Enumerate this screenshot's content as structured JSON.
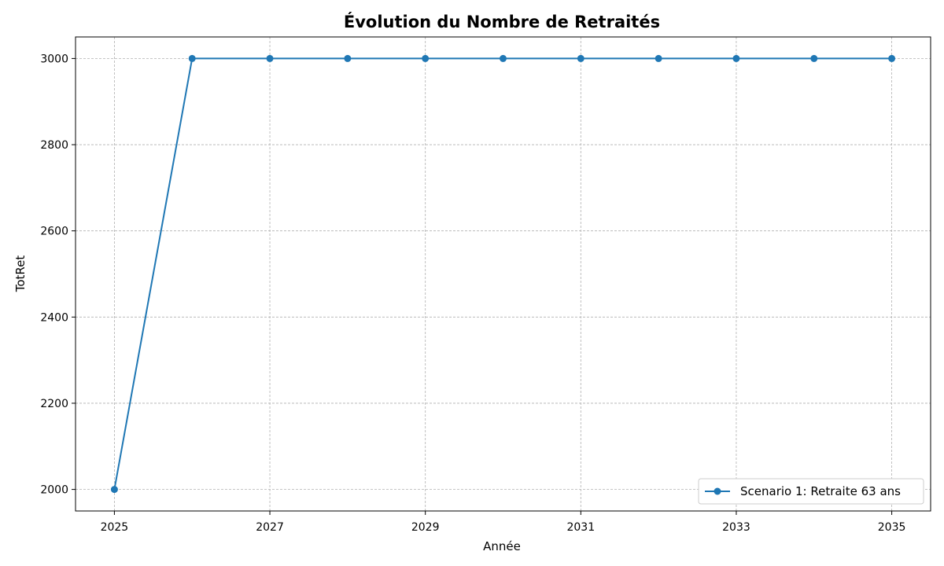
{
  "chart_data": {
    "type": "line",
    "title": "Évolution du Nombre de Retraités",
    "xlabel": "Année",
    "ylabel": "TotRet",
    "x": [
      2025,
      2026,
      2027,
      2028,
      2029,
      2030,
      2031,
      2032,
      2033,
      2034,
      2035
    ],
    "series": [
      {
        "name": "Scenario 1: Retraite 63 ans",
        "color": "#1f77b4",
        "marker": "circle",
        "values": [
          2000,
          3000,
          3000,
          3000,
          3000,
          3000,
          3000,
          3000,
          3000,
          3000,
          3000
        ]
      }
    ],
    "xticks": [
      "2025",
      "2027",
      "2029",
      "2031",
      "2033",
      "2035"
    ],
    "yticks": [
      "2000",
      "2200",
      "2400",
      "2600",
      "2800",
      "3000"
    ],
    "xlim": [
      2024.5,
      2035.5
    ],
    "ylim": [
      1950,
      3050
    ],
    "grid": true,
    "legend_position": "lower-right"
  }
}
